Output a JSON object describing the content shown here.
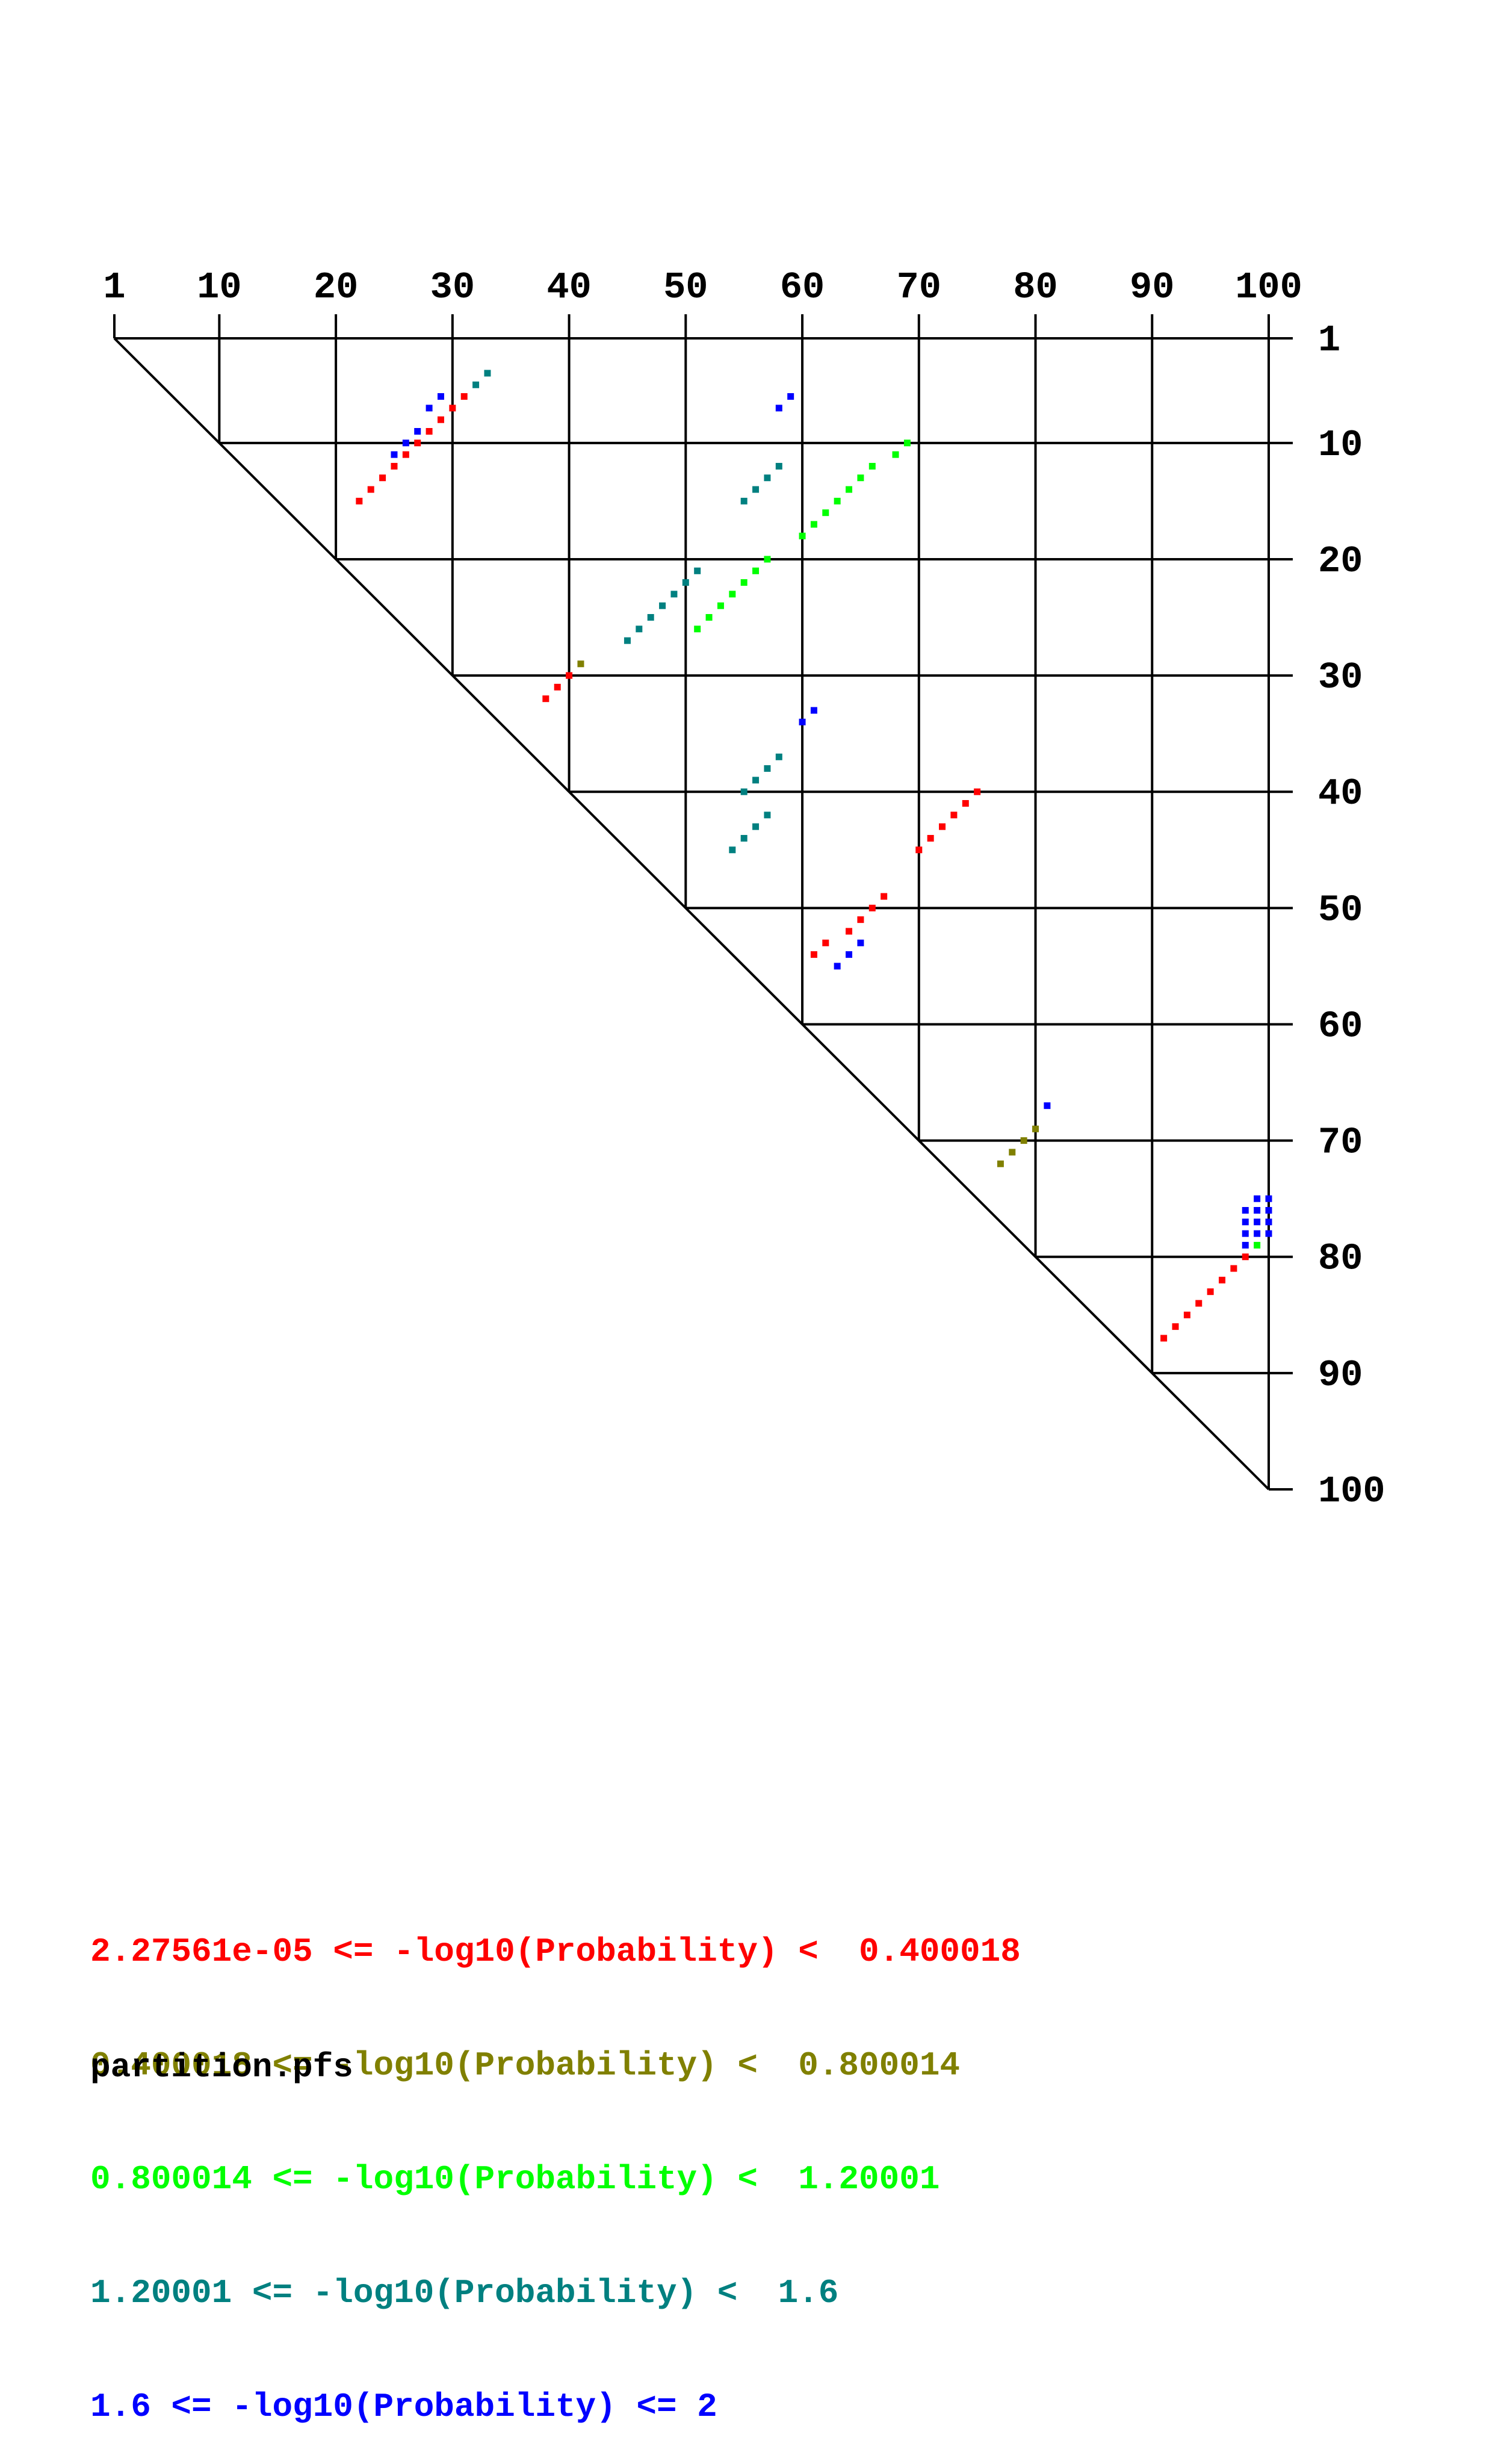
{
  "chart_data": {
    "type": "heatmap",
    "title": "",
    "xlabel": "",
    "ylabel": "",
    "sequence_length": 100,
    "x_ticks": [
      1,
      10,
      20,
      30,
      40,
      50,
      60,
      70,
      80,
      90,
      100
    ],
    "y_ticks": [
      1,
      10,
      20,
      30,
      40,
      50,
      60,
      70,
      80,
      90,
      100
    ],
    "x_tick_labels": [
      "1",
      "10",
      "20",
      "30",
      "40",
      "50",
      "60",
      "70",
      "80",
      "90",
      "100"
    ],
    "y_tick_labels": [
      "1",
      "10",
      "20",
      "30",
      "40",
      "50",
      "60",
      "70",
      "80",
      "90",
      "100"
    ],
    "grid": true,
    "legend_position": "bottom-left",
    "colors": [
      "#ff0000",
      "#808000",
      "#00ff00",
      "#008080",
      "#0000ff"
    ],
    "legend": [
      {
        "label": "2.27561e-05 <= -log10(Probability) <  0.400018",
        "color": "#ff0000"
      },
      {
        "label": "0.400018 <= -log10(Probability) <  0.800014",
        "color": "#808000"
      },
      {
        "label": "0.800014 <= -log10(Probability) <  1.20001",
        "color": "#00ff00"
      },
      {
        "label": "1.20001 <= -log10(Probability) <  1.6",
        "color": "#008080"
      },
      {
        "label": "1.6 <= -log10(Probability) <= 2",
        "color": "#0000ff"
      }
    ],
    "points": [
      [
        22,
        15,
        0
      ],
      [
        23,
        14,
        0
      ],
      [
        24,
        13,
        0
      ],
      [
        25,
        12,
        0
      ],
      [
        26,
        11,
        0
      ],
      [
        27,
        10,
        0
      ],
      [
        28,
        9,
        0
      ],
      [
        29,
        8,
        0
      ],
      [
        30,
        7,
        0
      ],
      [
        31,
        6,
        0
      ],
      [
        25,
        11,
        4
      ],
      [
        26,
        10,
        4
      ],
      [
        27,
        9,
        4
      ],
      [
        28,
        7,
        4
      ],
      [
        29,
        6,
        4
      ],
      [
        32,
        5,
        3
      ],
      [
        33,
        4,
        3
      ],
      [
        58,
        7,
        4
      ],
      [
        59,
        6,
        4
      ],
      [
        55,
        15,
        3
      ],
      [
        56,
        14,
        3
      ],
      [
        57,
        13,
        3
      ],
      [
        58,
        12,
        3
      ],
      [
        51,
        26,
        2
      ],
      [
        52,
        25,
        2
      ],
      [
        53,
        24,
        2
      ],
      [
        54,
        23,
        2
      ],
      [
        55,
        22,
        2
      ],
      [
        56,
        21,
        2
      ],
      [
        57,
        20,
        2
      ],
      [
        60,
        18,
        2
      ],
      [
        61,
        17,
        2
      ],
      [
        62,
        16,
        2
      ],
      [
        63,
        15,
        2
      ],
      [
        64,
        14,
        2
      ],
      [
        65,
        13,
        2
      ],
      [
        66,
        12,
        2
      ],
      [
        68,
        11,
        2
      ],
      [
        69,
        10,
        2
      ],
      [
        45,
        27,
        3
      ],
      [
        46,
        26,
        3
      ],
      [
        47,
        25,
        3
      ],
      [
        48,
        24,
        3
      ],
      [
        49,
        23,
        3
      ],
      [
        50,
        22,
        3
      ],
      [
        51,
        21,
        3
      ],
      [
        38,
        32,
        0
      ],
      [
        39,
        31,
        0
      ],
      [
        40,
        30,
        0
      ],
      [
        41,
        29,
        1
      ],
      [
        60,
        34,
        4
      ],
      [
        61,
        33,
        4
      ],
      [
        54,
        45,
        3
      ],
      [
        55,
        44,
        3
      ],
      [
        56,
        43,
        3
      ],
      [
        57,
        42,
        3
      ],
      [
        55,
        40,
        3
      ],
      [
        56,
        39,
        3
      ],
      [
        57,
        38,
        3
      ],
      [
        58,
        37,
        3
      ],
      [
        61,
        54,
        0
      ],
      [
        62,
        53,
        0
      ],
      [
        64,
        52,
        0
      ],
      [
        65,
        51,
        0
      ],
      [
        66,
        50,
        0
      ],
      [
        67,
        49,
        0
      ],
      [
        70,
        45,
        0
      ],
      [
        71,
        44,
        0
      ],
      [
        72,
        43,
        0
      ],
      [
        73,
        42,
        0
      ],
      [
        74,
        41,
        0
      ],
      [
        75,
        40,
        0
      ],
      [
        63,
        55,
        4
      ],
      [
        64,
        54,
        4
      ],
      [
        65,
        53,
        4
      ],
      [
        77,
        72,
        1
      ],
      [
        78,
        71,
        1
      ],
      [
        79,
        70,
        1
      ],
      [
        80,
        69,
        1
      ],
      [
        81,
        67,
        4
      ],
      [
        91,
        87,
        0
      ],
      [
        92,
        86,
        0
      ],
      [
        93,
        85,
        0
      ],
      [
        94,
        84,
        0
      ],
      [
        95,
        83,
        0
      ],
      [
        96,
        82,
        0
      ],
      [
        97,
        81,
        0
      ],
      [
        98,
        80,
        0
      ],
      [
        98,
        76,
        4
      ],
      [
        98,
        77,
        4
      ],
      [
        98,
        78,
        4
      ],
      [
        98,
        79,
        4
      ],
      [
        99,
        75,
        4
      ],
      [
        99,
        76,
        4
      ],
      [
        99,
        77,
        4
      ],
      [
        99,
        78,
        4
      ],
      [
        99,
        79,
        2
      ],
      [
        100,
        75,
        4
      ],
      [
        100,
        76,
        4
      ],
      [
        100,
        77,
        4
      ],
      [
        100,
        78,
        4
      ]
    ]
  },
  "footer": {
    "filename": "partition.pfs"
  }
}
